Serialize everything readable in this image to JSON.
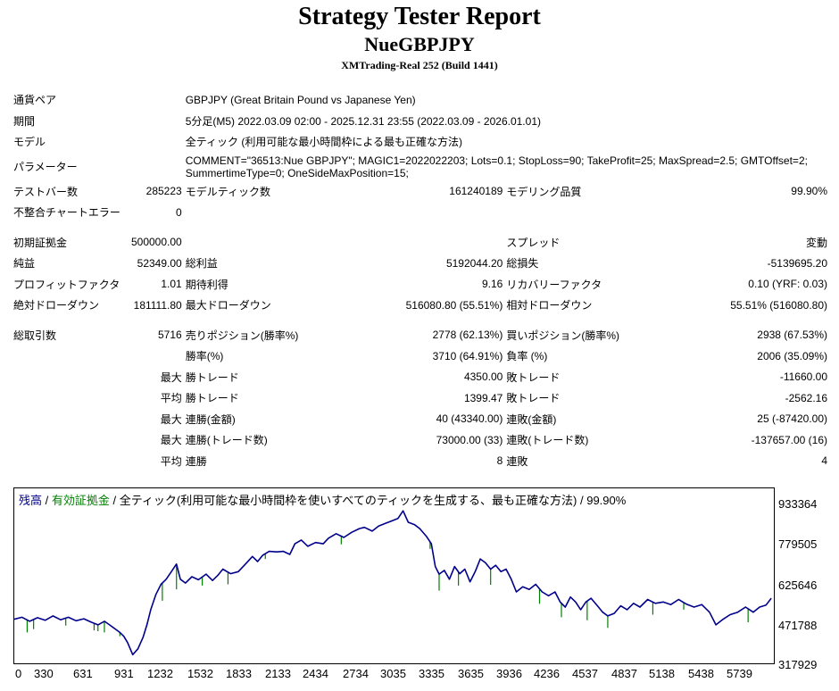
{
  "header": {
    "title": "Strategy Tester Report",
    "expert": "NueGBPJPY",
    "server": "XMTrading-Real 252 (Build 1441)"
  },
  "settings": {
    "symbol_label": "通貨ペア",
    "symbol_value": "GBPJPY (Great Britain Pound vs Japanese Yen)",
    "period_label": "期間",
    "period_value": "5分足(M5) 2022.03.09 02:00 - 2025.12.31 23:55 (2022.03.09 - 2026.01.01)",
    "model_label": "モデル",
    "model_value": "全ティック (利用可能な最小時間枠による最も正確な方法)",
    "params_label": "パラメーター",
    "params_value": "COMMENT=\"36513:Nue GBPJPY\"; MAGIC1=2022022203; Lots=0.1; StopLoss=90; TakeProfit=25; MaxSpread=2.5; GMTOffset=2; SummertimeType=0; OneSideMaxPosition=15;"
  },
  "stats": {
    "bars_label": "テストバー数",
    "bars_value": "285223",
    "ticks_label": "モデルティック数",
    "ticks_value": "161240189",
    "quality_label": "モデリング品質",
    "quality_value": "99.90%",
    "mismatch_label": "不整合チャートエラー",
    "mismatch_value": "0",
    "deposit_label": "初期証拠金",
    "deposit_value": "500000.00",
    "spread_label": "スプレッド",
    "spread_value": "変動",
    "netprofit_label": "純益",
    "netprofit_value": "52349.00",
    "grossprofit_label": "総利益",
    "grossprofit_value": "5192044.20",
    "grossloss_label": "総損失",
    "grossloss_value": "-5139695.20",
    "pf_label": "プロフィットファクタ",
    "pf_value": "1.01",
    "expected_label": "期待利得",
    "expected_value": "9.16",
    "recovery_label": "リカバリーファクタ",
    "recovery_value": "0.10 (YRF: 0.03)",
    "absdd_label": "絶対ドローダウン",
    "absdd_value": "181111.80",
    "maxdd_label": "最大ドローダウン",
    "maxdd_value": "516080.80 (55.51%)",
    "reldd_label": "相対ドローダウン",
    "reldd_value": "55.51% (516080.80)",
    "trades_label": "総取引数",
    "trades_value": "5716",
    "short_label": "売りポジション(勝率%)",
    "short_value": "2778 (62.13%)",
    "long_label": "買いポジション(勝率%)",
    "long_value": "2938 (67.53%)",
    "winrate_label": "勝率(%)",
    "winrate_value": "3710 (64.91%)",
    "lossrate_label": "負率 (%)",
    "lossrate_value": "2006 (35.09%)",
    "max_label": "最大",
    "avg_label": "平均",
    "win_trade_label": "勝トレード",
    "loss_trade_label": "敗トレード",
    "largest_win_value": "4350.00",
    "largest_loss_value": "-11660.00",
    "average_win_value": "1399.47",
    "average_loss_value": "-2562.16",
    "consec_win_amount_label": "連勝(金額)",
    "consec_win_amount_value": "40 (43340.00)",
    "consec_loss_amount_label": "連敗(金額)",
    "consec_loss_amount_value": "25 (-87420.00)",
    "consec_win_trades_label": "連勝(トレード数)",
    "consec_win_trades_value": "73000.00 (33)",
    "consec_loss_trades_label": "連敗(トレード数)",
    "consec_loss_trades_value": "-137657.00 (16)",
    "avg_consec_win_label": "連勝",
    "avg_consec_win_value": "8",
    "avg_consec_loss_label": "連敗",
    "avg_consec_loss_value": "4"
  },
  "chart_data": {
    "type": "line",
    "legend": {
      "balance": "残高",
      "sep1": " / ",
      "equity": "有効証拠金",
      "rest": " / 全ティック(利用可能な最小時間枠を使いすべてのティックを生成する、最も正確な方法) / 99.90%"
    },
    "colors": {
      "balance": "#00008b",
      "equity": "#008000"
    },
    "ylim": [
      317929,
      1009000
    ],
    "xlim": [
      0,
      5900
    ],
    "yticks": [
      "933364",
      "779505",
      "625646",
      "471788",
      "317929"
    ],
    "xticks": [
      "0",
      "330",
      "631",
      "931",
      "1232",
      "1532",
      "1833",
      "2133",
      "2434",
      "2734",
      "3035",
      "3335",
      "3635",
      "3936",
      "4236",
      "4537",
      "4837",
      "5138",
      "5438",
      "5739"
    ],
    "series": [
      {
        "values": [
          [
            0,
            492000
          ],
          [
            60,
            500000
          ],
          [
            120,
            484000
          ],
          [
            180,
            498000
          ],
          [
            240,
            488000
          ],
          [
            300,
            505000
          ],
          [
            360,
            490000
          ],
          [
            420,
            500000
          ],
          [
            480,
            486000
          ],
          [
            540,
            494000
          ],
          [
            600,
            480000
          ],
          [
            650,
            470000
          ],
          [
            700,
            484000
          ],
          [
            740,
            470000
          ],
          [
            780,
            455000
          ],
          [
            820,
            440000
          ],
          [
            850,
            425000
          ],
          [
            880,
            400000
          ],
          [
            920,
            352000
          ],
          [
            960,
            375000
          ],
          [
            1000,
            420000
          ],
          [
            1030,
            470000
          ],
          [
            1060,
            530000
          ],
          [
            1100,
            590000
          ],
          [
            1140,
            630000
          ],
          [
            1180,
            650000
          ],
          [
            1220,
            680000
          ],
          [
            1260,
            710000
          ],
          [
            1290,
            650000
          ],
          [
            1330,
            635000
          ],
          [
            1380,
            660000
          ],
          [
            1430,
            648000
          ],
          [
            1490,
            670000
          ],
          [
            1540,
            645000
          ],
          [
            1580,
            665000
          ],
          [
            1620,
            690000
          ],
          [
            1680,
            672000
          ],
          [
            1740,
            680000
          ],
          [
            1800,
            712000
          ],
          [
            1850,
            740000
          ],
          [
            1890,
            720000
          ],
          [
            1930,
            745000
          ],
          [
            1980,
            760000
          ],
          [
            2040,
            758000
          ],
          [
            2090,
            760000
          ],
          [
            2140,
            748000
          ],
          [
            2180,
            790000
          ],
          [
            2230,
            805000
          ],
          [
            2280,
            780000
          ],
          [
            2340,
            795000
          ],
          [
            2400,
            790000
          ],
          [
            2440,
            812000
          ],
          [
            2500,
            830000
          ],
          [
            2560,
            815000
          ],
          [
            2620,
            835000
          ],
          [
            2680,
            850000
          ],
          [
            2720,
            855000
          ],
          [
            2780,
            840000
          ],
          [
            2830,
            860000
          ],
          [
            2880,
            870000
          ],
          [
            2930,
            880000
          ],
          [
            2980,
            890000
          ],
          [
            3020,
            920000
          ],
          [
            3060,
            875000
          ],
          [
            3110,
            865000
          ],
          [
            3150,
            850000
          ],
          [
            3200,
            820000
          ],
          [
            3240,
            790000
          ],
          [
            3270,
            700000
          ],
          [
            3300,
            670000
          ],
          [
            3340,
            685000
          ],
          [
            3380,
            650000
          ],
          [
            3420,
            700000
          ],
          [
            3460,
            672000
          ],
          [
            3500,
            690000
          ],
          [
            3540,
            640000
          ],
          [
            3580,
            680000
          ],
          [
            3620,
            730000
          ],
          [
            3660,
            715000
          ],
          [
            3700,
            690000
          ],
          [
            3740,
            705000
          ],
          [
            3780,
            680000
          ],
          [
            3820,
            690000
          ],
          [
            3860,
            650000
          ],
          [
            3900,
            600000
          ],
          [
            3950,
            620000
          ],
          [
            4000,
            610000
          ],
          [
            4050,
            630000
          ],
          [
            4100,
            600000
          ],
          [
            4150,
            585000
          ],
          [
            4200,
            600000
          ],
          [
            4240,
            560000
          ],
          [
            4280,
            540000
          ],
          [
            4320,
            580000
          ],
          [
            4360,
            560000
          ],
          [
            4400,
            530000
          ],
          [
            4440,
            560000
          ],
          [
            4480,
            575000
          ],
          [
            4530,
            545000
          ],
          [
            4570,
            520000
          ],
          [
            4610,
            505000
          ],
          [
            4660,
            515000
          ],
          [
            4710,
            545000
          ],
          [
            4760,
            530000
          ],
          [
            4810,
            555000
          ],
          [
            4860,
            540000
          ],
          [
            4920,
            570000
          ],
          [
            4980,
            555000
          ],
          [
            5040,
            560000
          ],
          [
            5100,
            550000
          ],
          [
            5160,
            570000
          ],
          [
            5220,
            552000
          ],
          [
            5280,
            540000
          ],
          [
            5340,
            550000
          ],
          [
            5400,
            520000
          ],
          [
            5450,
            470000
          ],
          [
            5500,
            490000
          ],
          [
            5560,
            510000
          ],
          [
            5620,
            520000
          ],
          [
            5680,
            540000
          ],
          [
            5740,
            520000
          ],
          [
            5790,
            540000
          ],
          [
            5840,
            548000
          ],
          [
            5880,
            575000
          ]
        ]
      }
    ],
    "equity_dips": [
      [
        100,
        440000
      ],
      [
        150,
        453000
      ],
      [
        400,
        467000
      ],
      [
        620,
        448000
      ],
      [
        650,
        445000
      ],
      [
        700,
        440000
      ],
      [
        820,
        425000
      ],
      [
        1030,
        465000
      ],
      [
        1150,
        565000
      ],
      [
        1260,
        610000
      ],
      [
        1460,
        625000
      ],
      [
        1660,
        630000
      ],
      [
        1950,
        730000
      ],
      [
        2540,
        788000
      ],
      [
        3230,
        770000
      ],
      [
        3300,
        605000
      ],
      [
        3450,
        625000
      ],
      [
        3700,
        628000
      ],
      [
        4080,
        553000
      ],
      [
        4250,
        500000
      ],
      [
        4450,
        488000
      ],
      [
        4610,
        458000
      ],
      [
        4960,
        510000
      ],
      [
        5200,
        530000
      ],
      [
        5700,
        480000
      ]
    ]
  }
}
